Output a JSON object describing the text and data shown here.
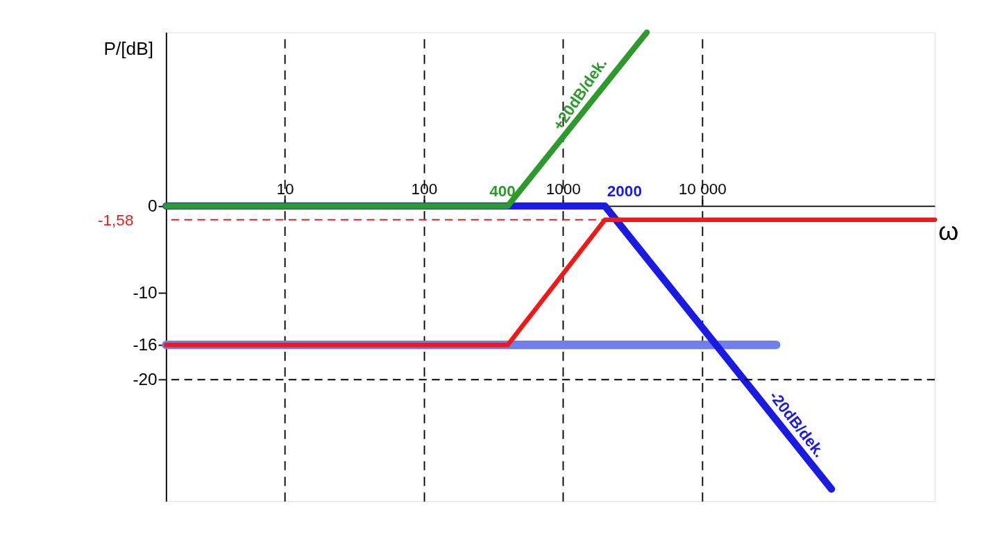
{
  "chart_data": {
    "type": "line",
    "ylabel": "P/[dB]",
    "xlabel": "ω",
    "log": "x",
    "xlim": [
      1.4,
      470000
    ],
    "xticks": [
      10,
      100,
      1000,
      {
        "value": 10000,
        "label": "10 000"
      }
    ],
    "ylim": [
      -34,
      20
    ],
    "yticks": [
      0,
      -10,
      -16,
      -20
    ],
    "grid": "x",
    "legend": false,
    "marker": "none",
    "line_style": "solid",
    "series": [
      {
        "color": "#6f7ff0",
        "x": [
          1.4,
          34000
        ],
        "values": [
          -16,
          -16
        ]
      },
      {
        "color": "#1a1ae0",
        "x": [
          1.4,
          2000,
          85000
        ],
        "values": [
          0,
          0,
          -32.6
        ]
      },
      {
        "color": "#2e9a2e",
        "x": [
          1.4,
          400,
          4000
        ],
        "values": [
          0,
          0,
          20
        ]
      },
      {
        "color": "#f01818",
        "x": [
          1.4,
          400,
          2000,
          470000
        ],
        "values": [
          -16,
          -16,
          -1.58,
          -1.58
        ]
      }
    ],
    "ref_lines": [
      {
        "axis": "y",
        "value": -1.58,
        "label": "-1,58",
        "color": "#f01818",
        "line_style": "dashed"
      },
      {
        "axis": "y",
        "value": -20,
        "label": null,
        "color": "#000000",
        "line_style": "dashed"
      }
    ],
    "annotations": [
      {
        "text": "400",
        "x": 400,
        "y": 0
      },
      {
        "text": "2000",
        "x": 2000,
        "y": 0
      },
      "+20dB/dek.",
      "-20dB/dek."
    ]
  }
}
